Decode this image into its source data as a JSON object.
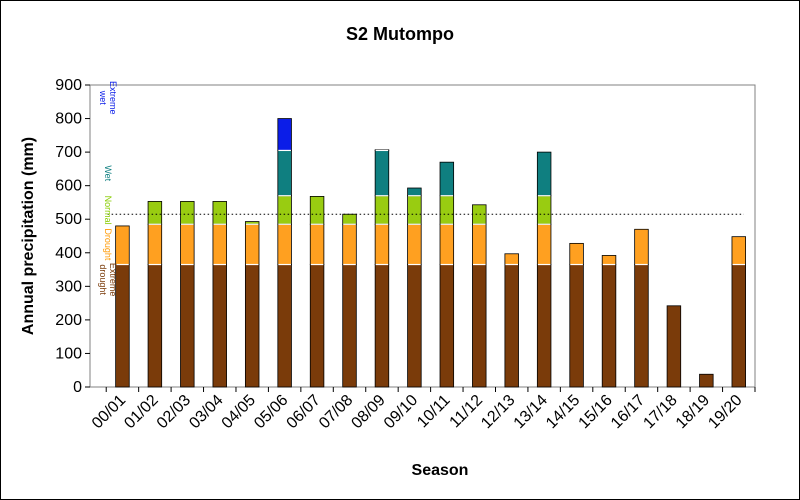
{
  "chart_data": {
    "type": "bar",
    "stacked": true,
    "title": "S2 Mutompo",
    "xlabel": "Season",
    "ylabel": "Annual precipitation (mm)",
    "ylim": [
      0,
      900
    ],
    "yticks": [
      0,
      100,
      200,
      300,
      400,
      500,
      600,
      700,
      800,
      900
    ],
    "grid": false,
    "categories": [
      "00/01",
      "01/02",
      "02/03",
      "03/04",
      "04/05",
      "05/06",
      "06/07",
      "07/08",
      "08/09",
      "09/10",
      "10/11",
      "11/12",
      "12/13",
      "13/14",
      "14/15",
      "15/16",
      "16/17",
      "17/18",
      "18/19",
      "19/20"
    ],
    "totals": [
      480,
      553,
      553,
      553,
      493,
      800,
      568,
      515,
      707,
      593,
      670,
      543,
      397,
      700,
      428,
      392,
      470,
      242,
      38,
      448
    ],
    "class_thresholds": [
      365,
      485,
      570,
      705
    ],
    "mean_line": 515,
    "classes": [
      {
        "name": "Extreme drought",
        "label_lines": [
          "Extreme",
          "drought"
        ],
        "color": "#7a3b0a",
        "label_color": "#7a3b0a",
        "from": 0,
        "to": 365
      },
      {
        "name": "Drought",
        "label_lines": [
          "Drought"
        ],
        "color": "#ffa020",
        "label_color": "#ff9900",
        "from": 365,
        "to": 485
      },
      {
        "name": "Normal",
        "label_lines": [
          "Normal"
        ],
        "color": "#99cc11",
        "label_color": "#88cc00",
        "from": 485,
        "to": 570
      },
      {
        "name": "Wet",
        "label_lines": [
          "Wet"
        ],
        "color": "#0f7f80",
        "label_color": "#0f7f80",
        "from": 570,
        "to": 705
      },
      {
        "name": "Extreme wet",
        "label_lines": [
          "Extreme",
          "wet"
        ],
        "color": "#0b1de8",
        "label_color": "#0b1de8",
        "from": 705,
        "to": 900
      }
    ]
  }
}
